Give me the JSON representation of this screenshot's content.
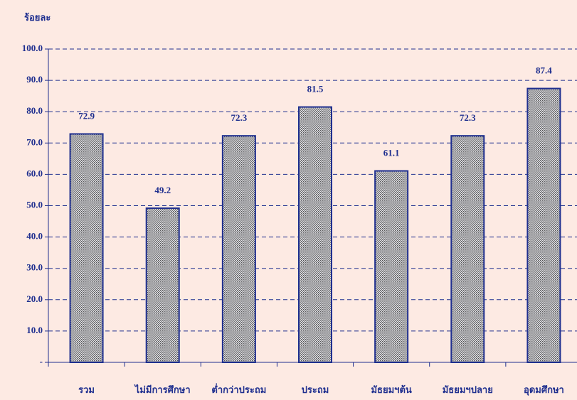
{
  "chart_data": {
    "type": "bar",
    "y_label": "ร้อยละ",
    "categories": [
      "รวม",
      "ไม่มีการศึกษา",
      "ต่ำกว่าประถม",
      "ประถม",
      "มัธยมฯต้น",
      "มัธยมฯปลาย",
      "อุดมศึกษา"
    ],
    "values": [
      72.9,
      49.2,
      72.3,
      81.5,
      61.1,
      72.3,
      87.4
    ],
    "color": "#a8a8b0",
    "edge_color": "#1f2f8f",
    "ylim": [
      0,
      100
    ],
    "yticks": [
      {
        "value": 0,
        "label": "-"
      },
      {
        "value": 10,
        "label": "10.0"
      },
      {
        "value": 20,
        "label": "20.0"
      },
      {
        "value": 30,
        "label": "30.0"
      },
      {
        "value": 40,
        "label": "40.0"
      },
      {
        "value": 50,
        "label": "50.0"
      },
      {
        "value": 60,
        "label": "60.0"
      },
      {
        "value": 70,
        "label": "70.0"
      },
      {
        "value": 80,
        "label": "80.0"
      },
      {
        "value": 90,
        "label": "90.0"
      },
      {
        "value": 100,
        "label": "100.0"
      }
    ],
    "grid": true
  }
}
